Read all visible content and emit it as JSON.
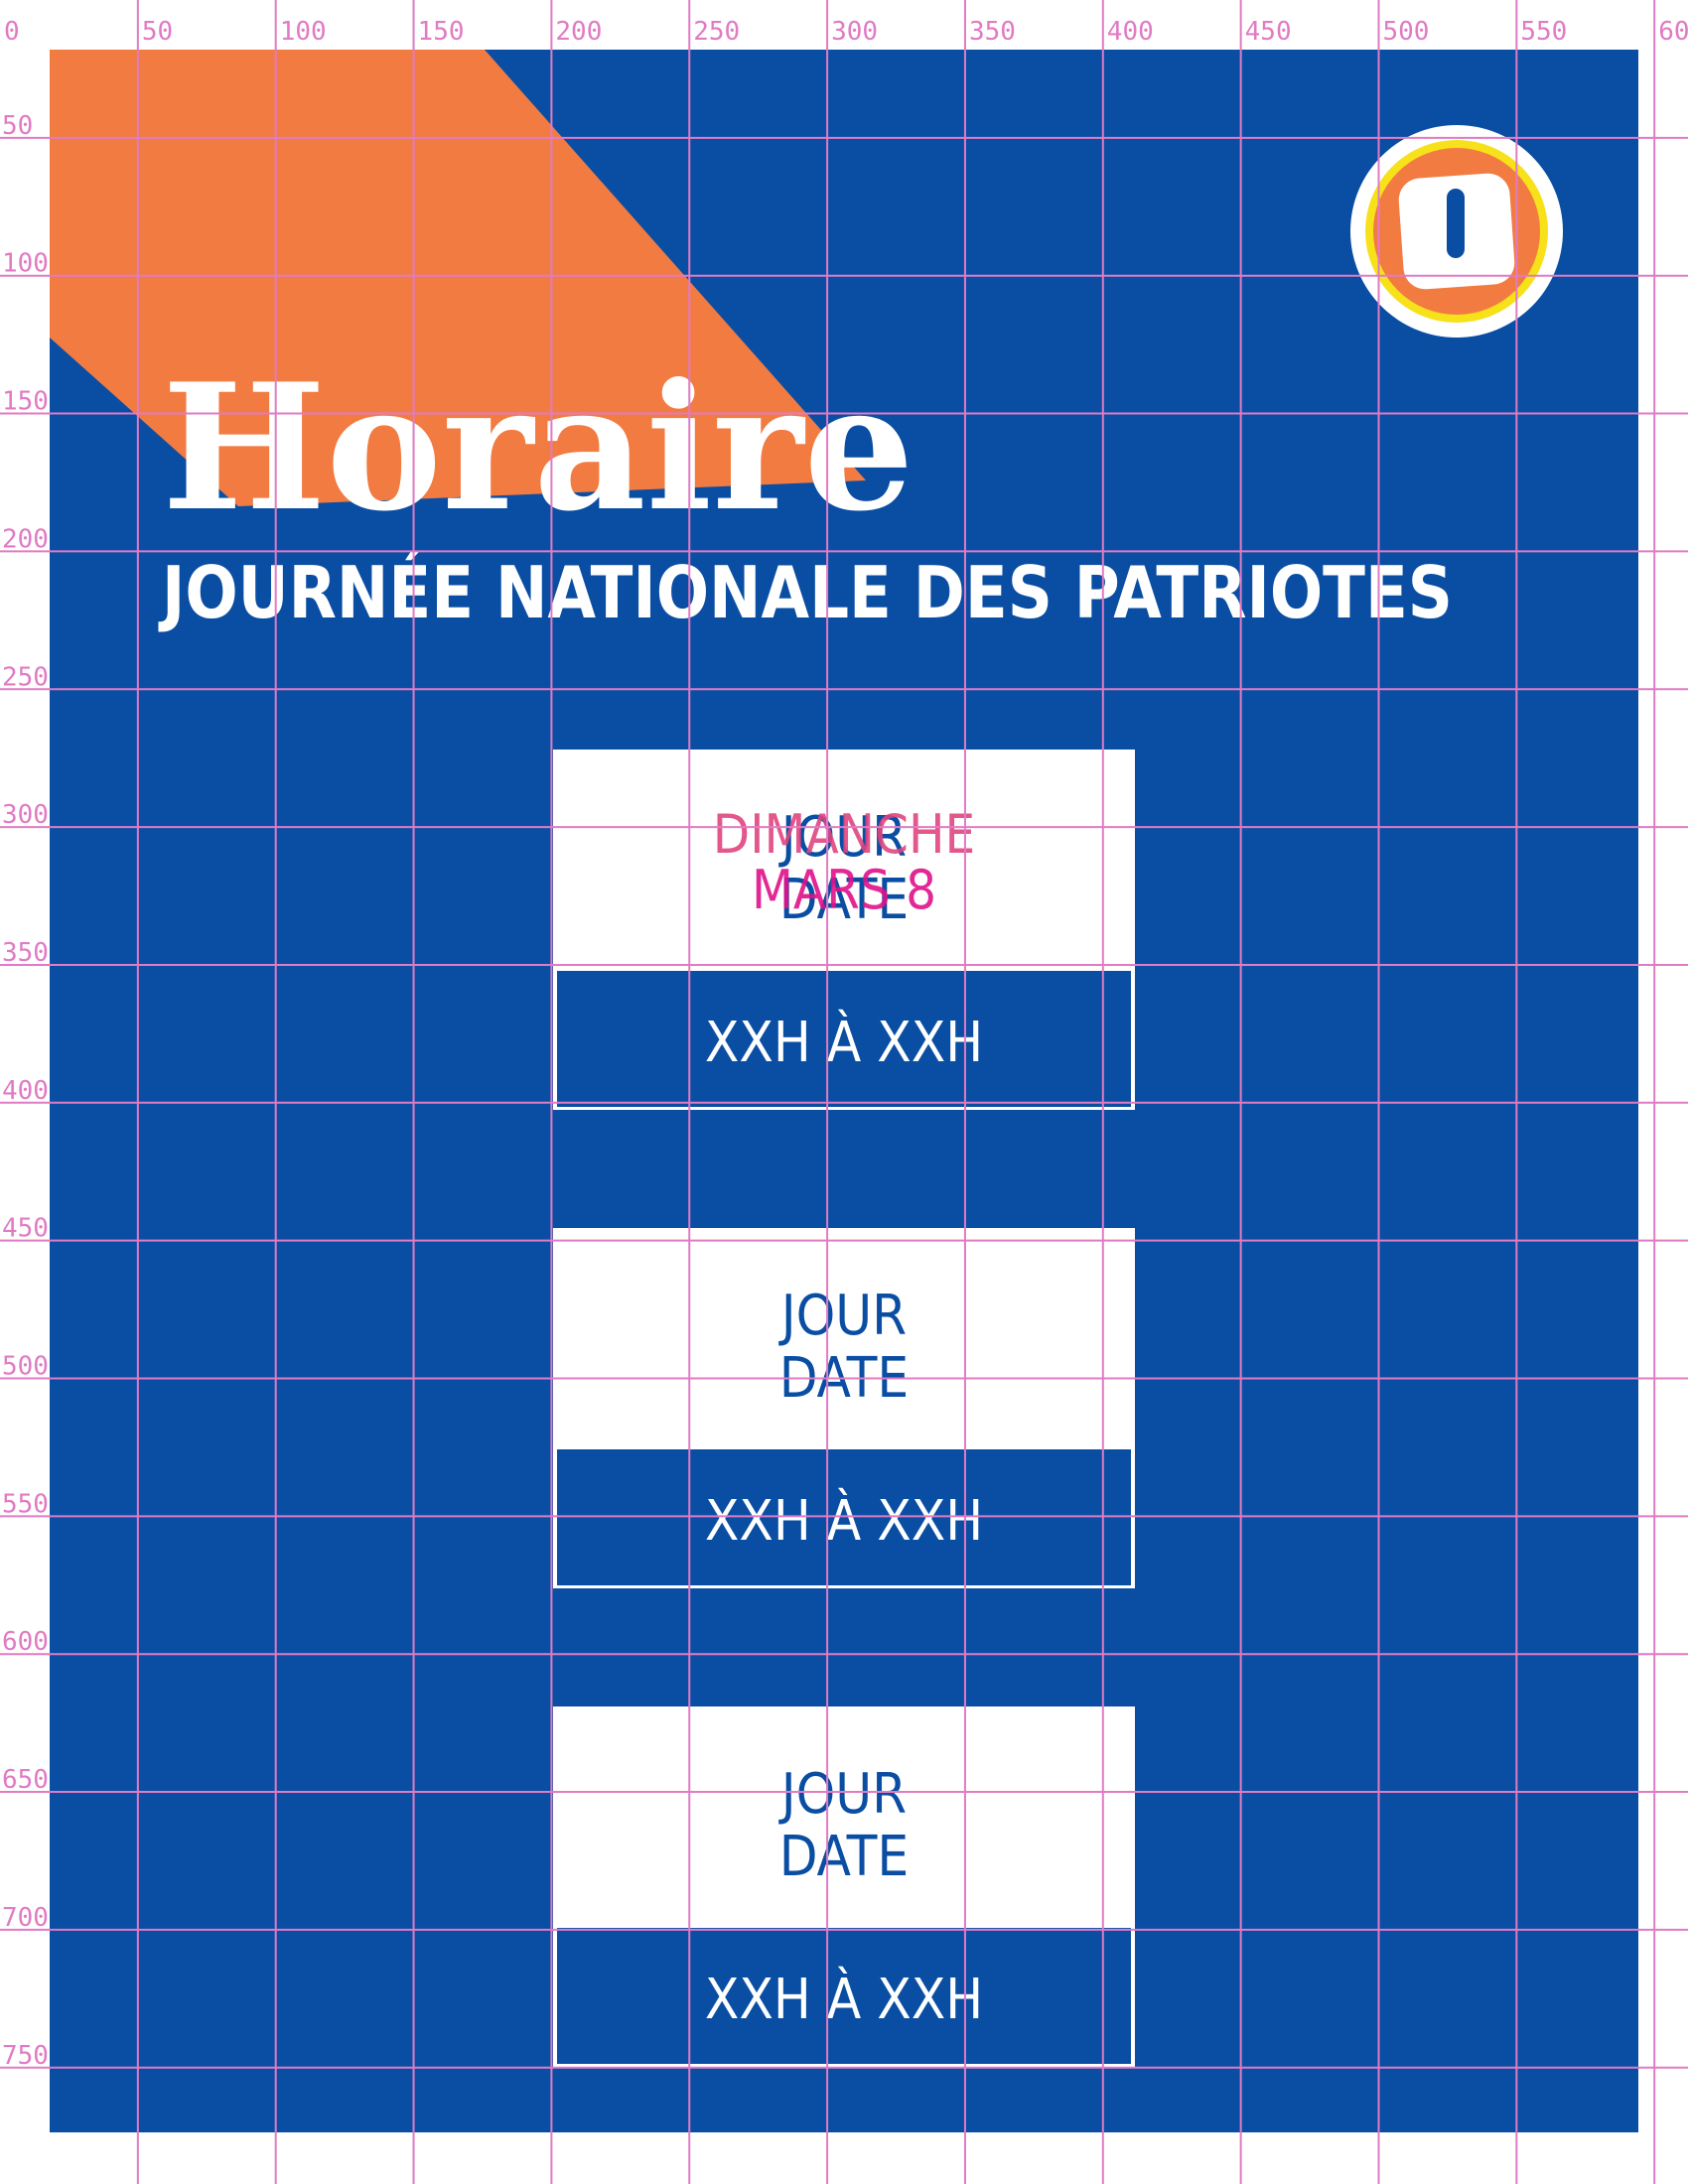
{
  "header": {
    "title": "Horaire",
    "subtitle": "JOURNÉE NATIONALE DES PATRIOTES"
  },
  "cards": [
    {
      "day": "JOUR",
      "date": "DATE",
      "hours": "XXH À XXH"
    },
    {
      "day": "JOUR",
      "date": "DATE",
      "hours": "XXH À XXH"
    },
    {
      "day": "JOUR",
      "date": "DATE",
      "hours": "XXH À XXH"
    }
  ],
  "overlay": {
    "day": "DIMANCHE",
    "date": "MARS 8"
  },
  "grid": {
    "x_labels": [
      "0",
      "50",
      "100",
      "150",
      "200",
      "250",
      "300",
      "350",
      "400",
      "450",
      "500",
      "550",
      "60"
    ],
    "y_labels": [
      "50",
      "100",
      "150",
      "200",
      "250",
      "300",
      "350",
      "400",
      "450",
      "500",
      "550",
      "600",
      "650",
      "700",
      "750"
    ]
  }
}
